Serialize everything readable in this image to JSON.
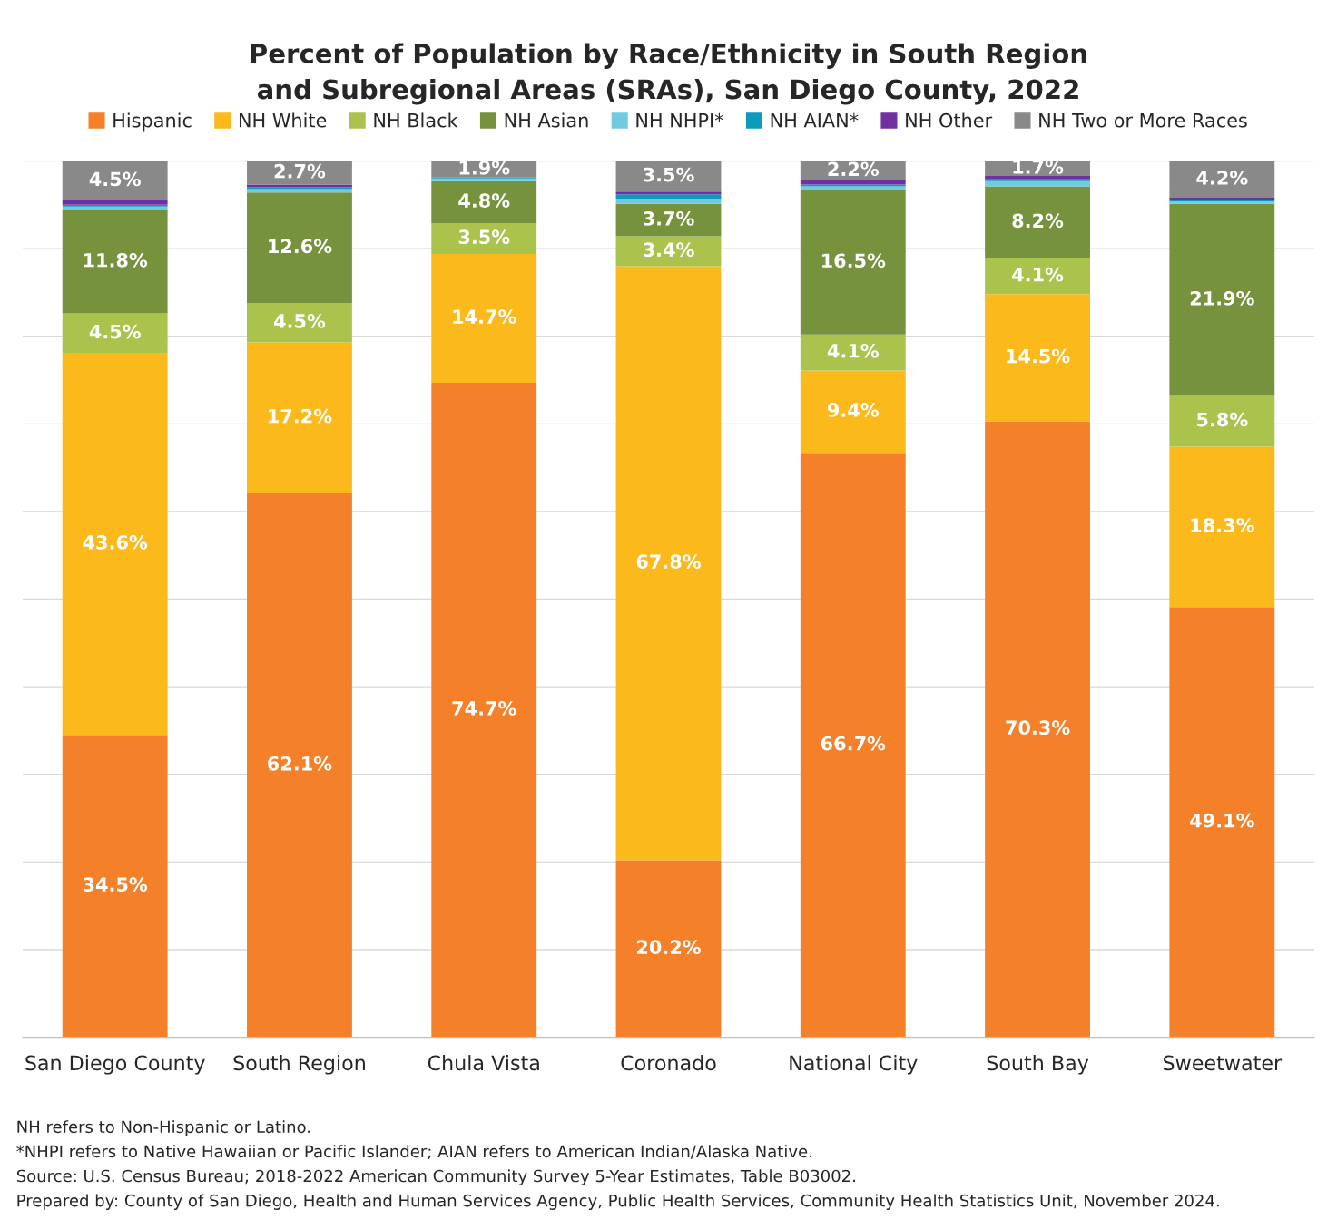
{
  "chart_data": {
    "type": "bar",
    "stacked": true,
    "title": "Percent of Population by Race/Ethnicity in South Region\nand Subregional Areas (SRAs), San Diego County, 2022",
    "categories": [
      "San Diego County",
      "South Region",
      "Chula Vista",
      "Coronado",
      "National City",
      "South Bay",
      "Sweetwater"
    ],
    "series": [
      {
        "name": "Hispanic",
        "color": "#f4812a",
        "values": [
          34.5,
          62.1,
          74.7,
          20.2,
          66.7,
          70.3,
          49.1
        ],
        "value_labels": [
          "34.5%",
          "62.1%",
          "74.7%",
          "20.2%",
          "66.7%",
          "70.3%",
          "49.1%"
        ]
      },
      {
        "name": "NH White",
        "color": "#fbb91c",
        "values": [
          43.6,
          17.2,
          14.7,
          67.8,
          9.4,
          14.5,
          18.3
        ],
        "value_labels": [
          "43.6%",
          "17.2%",
          "14.7%",
          "67.8%",
          "9.4%",
          "14.5%",
          "18.3%"
        ]
      },
      {
        "name": "NH Black",
        "color": "#a9c34c",
        "values": [
          4.5,
          4.5,
          3.5,
          3.4,
          4.1,
          4.1,
          5.8
        ],
        "value_labels": [
          "4.5%",
          "4.5%",
          "3.5%",
          "3.4%",
          "4.1%",
          "4.1%",
          "5.8%"
        ]
      },
      {
        "name": "NH Asian",
        "color": "#76923c",
        "values": [
          11.8,
          12.6,
          4.8,
          3.7,
          16.5,
          8.2,
          21.9
        ],
        "value_labels": [
          "11.8%",
          "12.6%",
          "4.8%",
          "3.7%",
          "16.5%",
          "8.2%",
          "21.9%"
        ]
      },
      {
        "name": "NH NHPI*",
        "color": "#6fcbe0",
        "values": [
          0.4,
          0.4,
          0.3,
          0.6,
          0.4,
          0.6,
          0.3
        ]
      },
      {
        "name": "NH AIAN*",
        "color": "#0b9bbb",
        "values": [
          0.2,
          0.2,
          0.1,
          0.5,
          0.2,
          0.2,
          0.1
        ]
      },
      {
        "name": "NH Other",
        "color": "#7030a0",
        "values": [
          0.5,
          0.3,
          0.0,
          0.3,
          0.5,
          0.4,
          0.3
        ]
      },
      {
        "name": "NH Two or More Races",
        "color": "#898989",
        "values": [
          4.5,
          2.7,
          1.9,
          3.5,
          2.2,
          1.7,
          4.2
        ],
        "value_labels": [
          "4.5%",
          "2.7%",
          "1.9%",
          "3.5%",
          "2.2%",
          "1.7%",
          "4.2%"
        ]
      }
    ],
    "ylim": [
      0,
      100
    ],
    "yticks": [
      {
        "value": 0,
        "label": null
      },
      {
        "value": 10,
        "label": null
      },
      {
        "value": 20,
        "label": null
      },
      {
        "value": 30,
        "label": null
      },
      {
        "value": 40,
        "label": null
      },
      {
        "value": 50,
        "label": null
      },
      {
        "value": 60,
        "label": null
      },
      {
        "value": 70,
        "label": null
      },
      {
        "value": 80,
        "label": null
      },
      {
        "value": 90,
        "label": null
      },
      {
        "value": 100,
        "label": null
      }
    ],
    "tick_labels": "x",
    "grid": "y",
    "legend": "top",
    "annotations": [
      "NH refers to Non-Hispanic or Latino.",
      "*NHPI refers to Native Hawaiian or Pacific Islander; AIAN refers to American Indian/Alaska Native.",
      "Source: U.S. Census Bureau; 2018-2022 American Community Survey 5-Year Estimates, Table B03002.",
      "Prepared by: County of San Diego, Health and Human Services Agency, Public Health Services, Community Health Statistics Unit, November 2024."
    ]
  }
}
